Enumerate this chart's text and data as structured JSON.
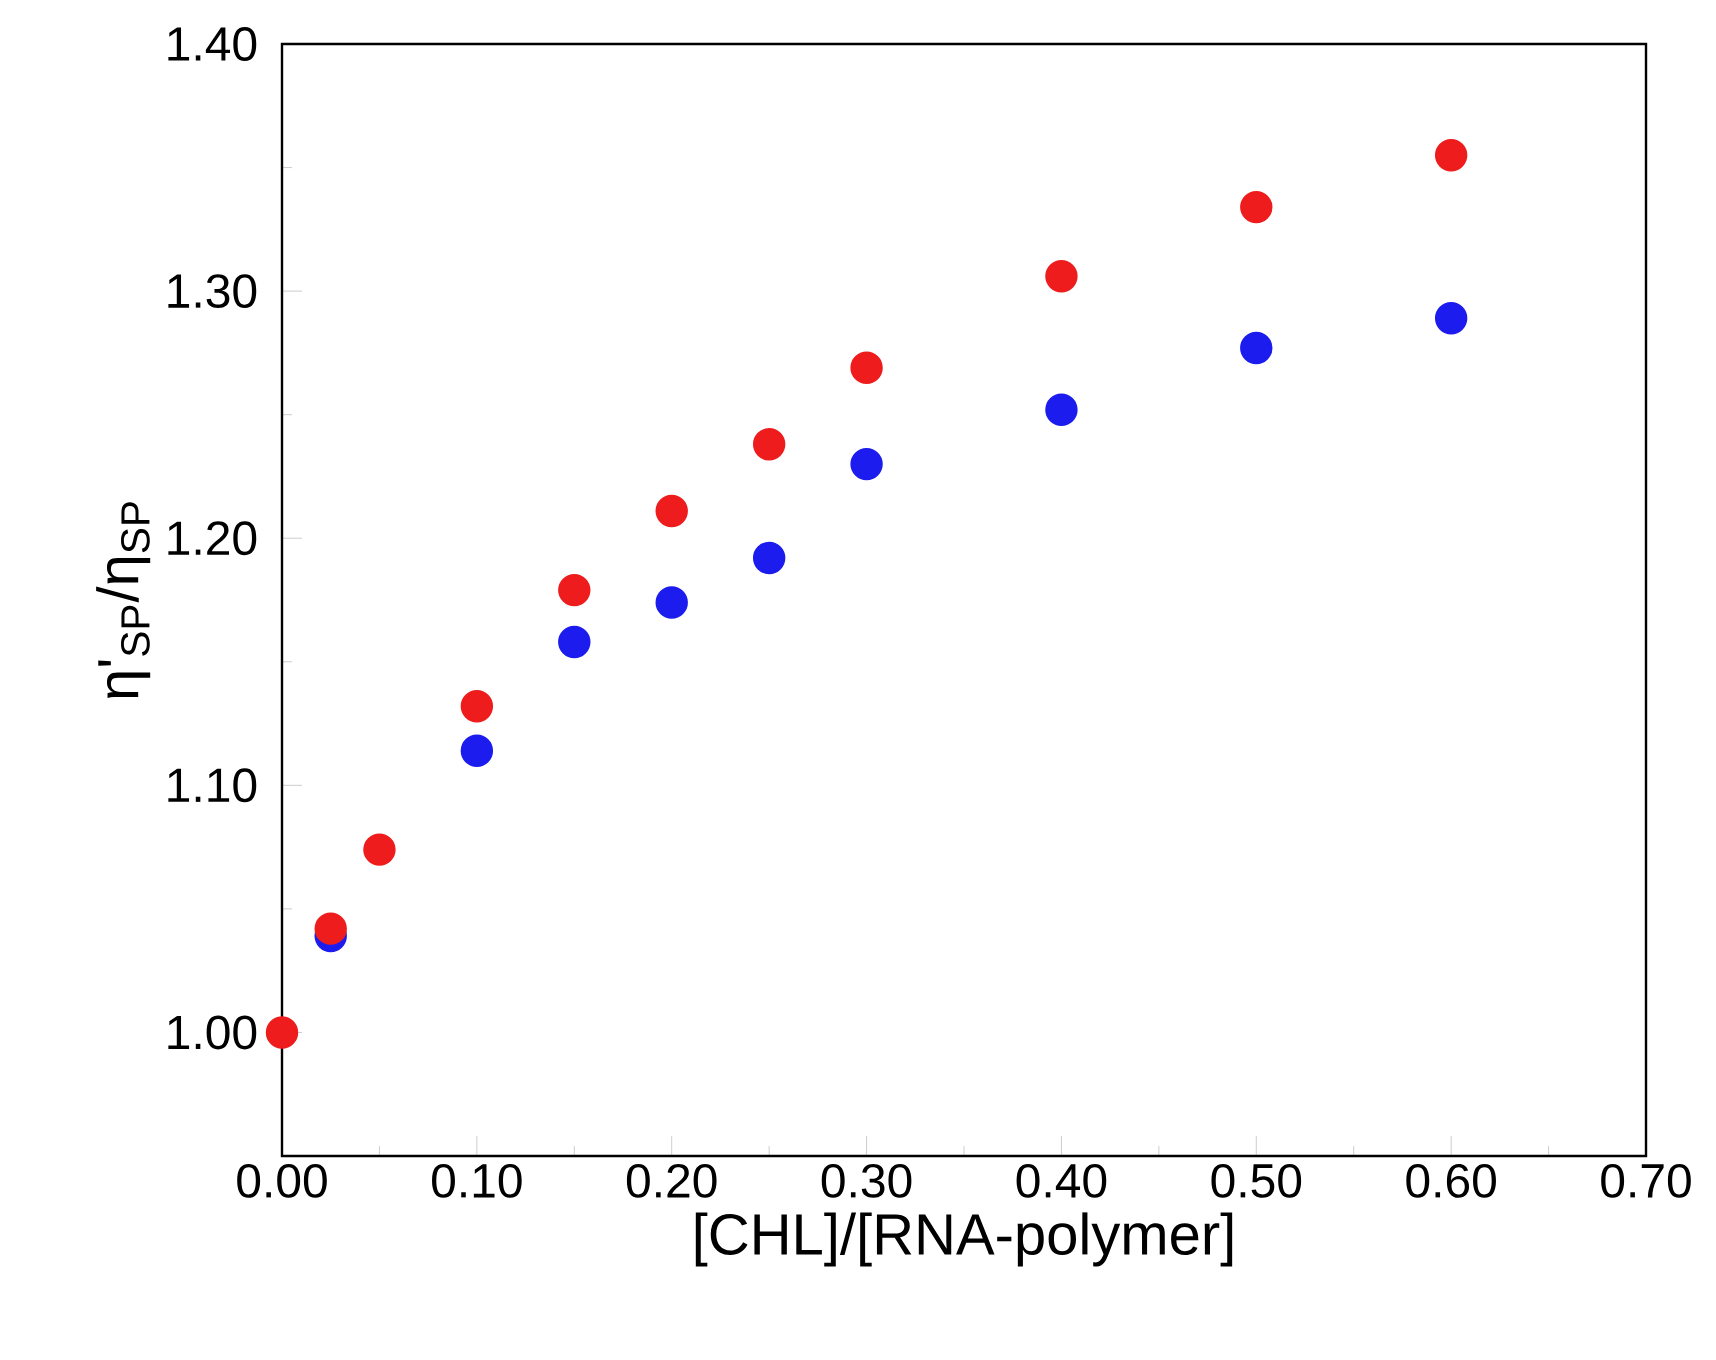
{
  "chart_data": {
    "type": "scatter",
    "xlabel": "[CHL]/[RNA-polymer]",
    "ylabel": "η'$_{SP}$/η$_{SP}$",
    "x": [
      0,
      0.025,
      0.05,
      0.1,
      0.15,
      0.2,
      0.25,
      0.3,
      0.4,
      0.5,
      0.6
    ],
    "series": [
      {
        "color": "#ee1c1c",
        "values": [
          1.0,
          1.042,
          1.074,
          1.132,
          1.179,
          1.211,
          1.238,
          1.269,
          1.306,
          1.334,
          1.355
        ]
      },
      {
        "color": "#1c1cee",
        "values": [
          null,
          1.039,
          null,
          1.114,
          1.158,
          1.174,
          1.192,
          1.23,
          1.252,
          1.277,
          1.289
        ]
      }
    ],
    "xlim": [
      0,
      0.7
    ],
    "ylim": [
      0.95,
      1.4
    ],
    "xticks": [
      {
        "value": 0,
        "label": "0.00"
      },
      {
        "value": 0.1,
        "label": "0.10"
      },
      {
        "value": 0.2,
        "label": "0.20"
      },
      {
        "value": 0.3,
        "label": "0.30"
      },
      {
        "value": 0.4,
        "label": "0.40"
      },
      {
        "value": 0.5,
        "label": "0.50"
      },
      {
        "value": 0.6,
        "label": "0.60"
      },
      {
        "value": 0.7,
        "label": "0.70"
      }
    ],
    "yticks": [
      {
        "value": 1.0,
        "label": "1.00"
      },
      {
        "value": 1.1,
        "label": "1.10"
      },
      {
        "value": 1.2,
        "label": "1.20"
      },
      {
        "value": 1.3,
        "label": "1.30"
      },
      {
        "value": 1.4,
        "label": "1.40"
      }
    ],
    "grid": false
  }
}
